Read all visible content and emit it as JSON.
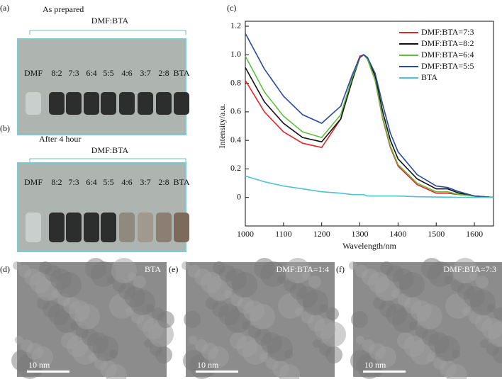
{
  "panels": {
    "a": {
      "label": "(a)",
      "title": "As prepared",
      "group_label": "DMF:BTA",
      "vial_labels": [
        "DMF",
        "8:2",
        "7:3",
        "6:4",
        "5:5",
        "4:6",
        "3:7",
        "2:8",
        "BTA"
      ]
    },
    "b": {
      "label": "(b)",
      "title": "After 4 hour",
      "group_label": "DMF:BTA",
      "vial_labels": [
        "DMF",
        "8:2",
        "7:3",
        "6:4",
        "5:5",
        "4:6",
        "3:7",
        "2:8",
        "BTA"
      ]
    },
    "d": {
      "label": "(d)",
      "caption": "BTA",
      "scale": "10 nm"
    },
    "e": {
      "label": "(e)",
      "caption": "DMF:BTA=1:4",
      "scale": "10 nm"
    },
    "f": {
      "label": "(f)",
      "caption": "DMF:BTA=7:3",
      "scale": "10 nm"
    }
  },
  "chart_data": {
    "type": "line",
    "panel_label": "(c)",
    "x_label": "Wavelength/nm",
    "y_label": "Intensity/a.u.",
    "x": [
      1000,
      1050,
      1100,
      1150,
      1200,
      1250,
      1280,
      1300,
      1310,
      1320,
      1340,
      1360,
      1380,
      1400,
      1450,
      1500,
      1530,
      1560,
      1600,
      1650
    ],
    "series": [
      {
        "name": "DMF:BTA=7:3",
        "color": "#e0262b",
        "values": [
          0.82,
          0.6,
          0.46,
          0.38,
          0.35,
          0.55,
          0.85,
          0.99,
          1.0,
          0.97,
          0.82,
          0.55,
          0.35,
          0.22,
          0.09,
          0.03,
          0.03,
          0.02,
          0.01,
          0
        ]
      },
      {
        "name": "DMF:BTA=8:2",
        "color": "#111111",
        "values": [
          0.91,
          0.67,
          0.52,
          0.42,
          0.39,
          0.55,
          0.82,
          0.98,
          1.0,
          0.98,
          0.85,
          0.6,
          0.4,
          0.27,
          0.13,
          0.06,
          0.06,
          0.03,
          0.01,
          0
        ]
      },
      {
        "name": "DMF:BTA=6:4",
        "color": "#5fbf3f",
        "values": [
          0.99,
          0.74,
          0.57,
          0.46,
          0.42,
          0.58,
          0.84,
          0.98,
          1.0,
          0.97,
          0.82,
          0.56,
          0.36,
          0.23,
          0.1,
          0.04,
          0.04,
          0.02,
          0.01,
          0
        ]
      },
      {
        "name": "DMF:BTA=5:5",
        "color": "#2a4a9c",
        "values": [
          1.15,
          0.9,
          0.71,
          0.58,
          0.52,
          0.64,
          0.86,
          0.98,
          1.0,
          0.98,
          0.87,
          0.65,
          0.45,
          0.32,
          0.16,
          0.08,
          0.07,
          0.04,
          0.01,
          0
        ]
      },
      {
        "name": "BTA",
        "color": "#4fc3d0",
        "values": [
          0.15,
          0.11,
          0.08,
          0.06,
          0.04,
          0.03,
          0.02,
          0.02,
          0.02,
          0.01,
          0.01,
          0.01,
          0.01,
          0.01,
          0.005,
          0.003,
          0.002,
          0.001,
          0,
          0
        ]
      }
    ],
    "xlim": [
      1000,
      1650
    ],
    "ylim": [
      -0.2,
      1.2
    ],
    "xticks": [
      1000,
      1100,
      1200,
      1300,
      1400,
      1500,
      1600
    ],
    "yticks": [
      0,
      0.2,
      0.4,
      0.6,
      0.8,
      {
        "value": 1,
        "label": "1.0"
      },
      1.2
    ]
  }
}
